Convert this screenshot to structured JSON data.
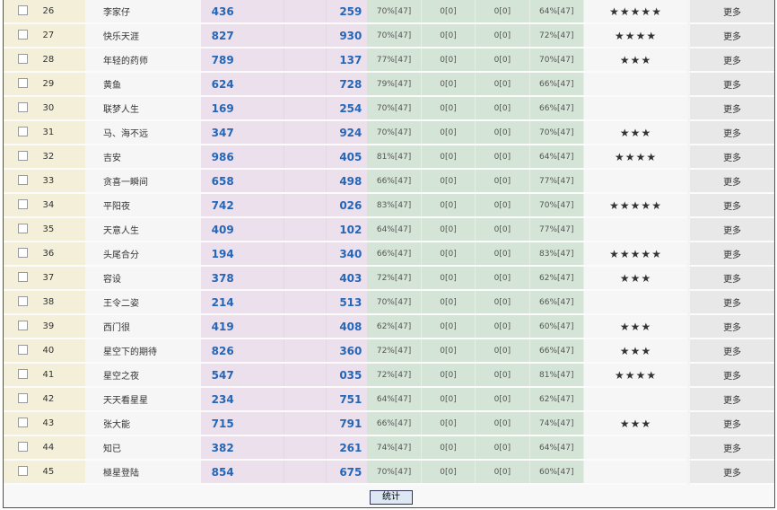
{
  "rows": [
    {
      "id": "26",
      "name": "李家仔",
      "a": "436",
      "b": "259",
      "p1": "70%[47]",
      "p2": "0[0]",
      "p3": "0[0]",
      "p4": "64%[47]",
      "stars": 5
    },
    {
      "id": "27",
      "name": "快乐天涯",
      "a": "827",
      "b": "930",
      "p1": "70%[47]",
      "p2": "0[0]",
      "p3": "0[0]",
      "p4": "72%[47]",
      "stars": 4
    },
    {
      "id": "28",
      "name": "年轻的药师",
      "a": "789",
      "b": "137",
      "p1": "77%[47]",
      "p2": "0[0]",
      "p3": "0[0]",
      "p4": "70%[47]",
      "stars": 3
    },
    {
      "id": "29",
      "name": "黄鱼",
      "a": "624",
      "b": "728",
      "p1": "79%[47]",
      "p2": "0[0]",
      "p3": "0[0]",
      "p4": "66%[47]",
      "stars": 0
    },
    {
      "id": "30",
      "name": "联梦人生",
      "a": "169",
      "b": "254",
      "p1": "70%[47]",
      "p2": "0[0]",
      "p3": "0[0]",
      "p4": "66%[47]",
      "stars": 0
    },
    {
      "id": "31",
      "name": "马、海不远",
      "a": "347",
      "b": "924",
      "p1": "70%[47]",
      "p2": "0[0]",
      "p3": "0[0]",
      "p4": "70%[47]",
      "stars": 3
    },
    {
      "id": "32",
      "name": "吉安",
      "a": "986",
      "b": "405",
      "p1": "81%[47]",
      "p2": "0[0]",
      "p3": "0[0]",
      "p4": "64%[47]",
      "stars": 4
    },
    {
      "id": "33",
      "name": "贪喜一瞬间",
      "a": "658",
      "b": "498",
      "p1": "66%[47]",
      "p2": "0[0]",
      "p3": "0[0]",
      "p4": "77%[47]",
      "stars": 0
    },
    {
      "id": "34",
      "name": "平阳夜",
      "a": "742",
      "b": "026",
      "p1": "83%[47]",
      "p2": "0[0]",
      "p3": "0[0]",
      "p4": "70%[47]",
      "stars": 5
    },
    {
      "id": "35",
      "name": "天意人生",
      "a": "409",
      "b": "102",
      "p1": "64%[47]",
      "p2": "0[0]",
      "p3": "0[0]",
      "p4": "77%[47]",
      "stars": 0
    },
    {
      "id": "36",
      "name": "头尾合分",
      "a": "194",
      "b": "340",
      "p1": "66%[47]",
      "p2": "0[0]",
      "p3": "0[0]",
      "p4": "83%[47]",
      "stars": 5
    },
    {
      "id": "37",
      "name": "容设",
      "a": "378",
      "b": "403",
      "p1": "72%[47]",
      "p2": "0[0]",
      "p3": "0[0]",
      "p4": "62%[47]",
      "stars": 3
    },
    {
      "id": "38",
      "name": "王令二姿",
      "a": "214",
      "b": "513",
      "p1": "70%[47]",
      "p2": "0[0]",
      "p3": "0[0]",
      "p4": "66%[47]",
      "stars": 0
    },
    {
      "id": "39",
      "name": "西门很",
      "a": "419",
      "b": "408",
      "p1": "62%[47]",
      "p2": "0[0]",
      "p3": "0[0]",
      "p4": "60%[47]",
      "stars": 3
    },
    {
      "id": "40",
      "name": "星空下的期待",
      "a": "826",
      "b": "360",
      "p1": "72%[47]",
      "p2": "0[0]",
      "p3": "0[0]",
      "p4": "66%[47]",
      "stars": 3
    },
    {
      "id": "41",
      "name": "星空之夜",
      "a": "547",
      "b": "035",
      "p1": "72%[47]",
      "p2": "0[0]",
      "p3": "0[0]",
      "p4": "81%[47]",
      "stars": 4
    },
    {
      "id": "42",
      "name": "天天看星星",
      "a": "234",
      "b": "751",
      "p1": "64%[47]",
      "p2": "0[0]",
      "p3": "0[0]",
      "p4": "62%[47]",
      "stars": 0
    },
    {
      "id": "43",
      "name": "张大能",
      "a": "715",
      "b": "791",
      "p1": "66%[47]",
      "p2": "0[0]",
      "p3": "0[0]",
      "p4": "74%[47]",
      "stars": 3
    },
    {
      "id": "44",
      "name": "知已",
      "a": "382",
      "b": "261",
      "p1": "74%[47]",
      "p2": "0[0]",
      "p3": "0[0]",
      "p4": "64%[47]",
      "stars": 0
    },
    {
      "id": "45",
      "name": "極星登陆",
      "a": "854",
      "b": "675",
      "p1": "70%[47]",
      "p2": "0[0]",
      "p3": "0[0]",
      "p4": "60%[47]",
      "stars": 0
    }
  ],
  "more_label": "更多",
  "stats_button": "统计"
}
